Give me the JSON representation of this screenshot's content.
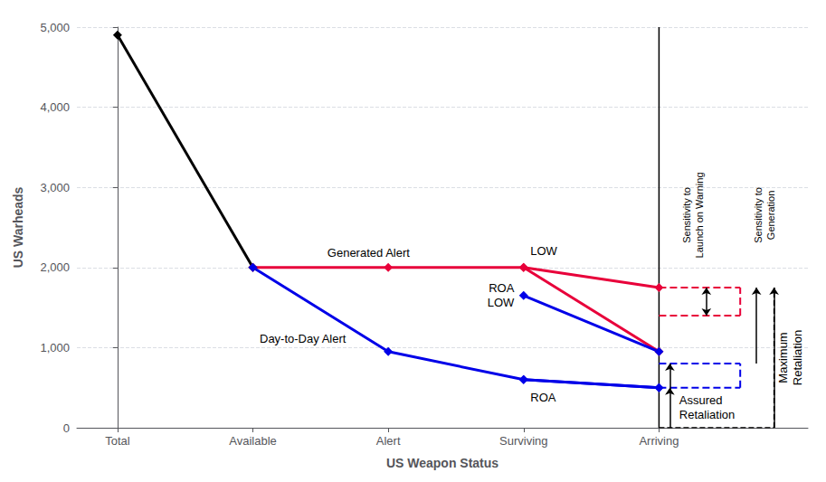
{
  "chart_data": {
    "type": "line",
    "xlabel": "US Weapon Status",
    "ylabel": "US Warheads",
    "categories": [
      "Total",
      "Available",
      "Alert",
      "Surviving",
      "Arriving"
    ],
    "series": [
      {
        "color": "#000000",
        "marker": "diamond",
        "line_style": "solid",
        "values": [
          4900,
          2000,
          null,
          null,
          null
        ]
      },
      {
        "color": "#e8003a",
        "marker": "diamond",
        "line_style": "solid",
        "values": [
          null,
          2000,
          2000,
          2000,
          1750
        ]
      },
      {
        "color": "#0000e8",
        "marker": "diamond",
        "line_style": "solid",
        "values": [
          null,
          2000,
          950,
          600,
          500
        ]
      },
      {
        "color": "#e8003a",
        "marker": "diamond",
        "line_style": "solid",
        "values": [
          null,
          null,
          null,
          2000,
          950
        ]
      },
      {
        "color": "#0000e8",
        "marker": "diamond",
        "line_style": "solid",
        "values": [
          null,
          null,
          null,
          1650,
          950
        ]
      },
      {
        "color": "#0000e8",
        "marker": "diamond",
        "line_style": "solid",
        "values": [
          null,
          null,
          null,
          600,
          500
        ]
      }
    ],
    "reference_lines": [
      {
        "value": 1750,
        "color": "#e8003a",
        "line_style": "dashed"
      },
      {
        "value": 1400,
        "color": "#e8003a",
        "line_style": "dashed"
      },
      {
        "value": 800,
        "color": "#0000e8",
        "line_style": "dashed"
      },
      {
        "value": 500,
        "color": "#0000e8",
        "line_style": "dashed"
      },
      {
        "value": 0,
        "color": "#000000",
        "line_style": "dashed"
      }
    ],
    "annotations": [
      "Generated Alert",
      "Day-to-Day Alert",
      "LOW",
      "ROA\nLOW",
      "ROA",
      "Assured\nRetaliation",
      "Maximum\nRetaliation",
      "Sensitivity to\nLaunch on Warning",
      "Sensitivity to\nGeneration"
    ],
    "ylim": [
      0,
      5000
    ],
    "yticks": [
      0,
      {
        "value": 1000,
        "label": "1,000"
      },
      {
        "value": 2000,
        "label": "2,000"
      },
      {
        "value": 3000,
        "label": "3,000"
      },
      {
        "value": 4000,
        "label": "4,000"
      },
      {
        "value": 5000,
        "label": "5,000"
      }
    ],
    "grid": true
  }
}
